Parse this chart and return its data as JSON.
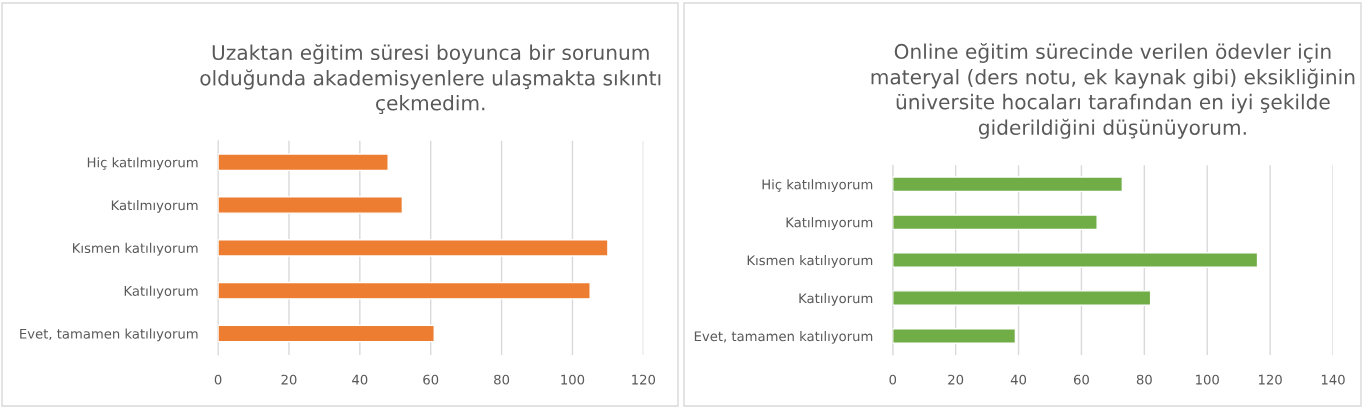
{
  "chart_data": [
    {
      "type": "bar",
      "orientation": "horizontal",
      "title": "Uzaktan eğitim süresi boyunca bir sorunum\nolduğunda akademisyenlere ulaşmakta sıkıntı\nçekmedim.",
      "categories": [
        "Hiç katılmıyorum",
        "Katılmıyorum",
        "Kısmen katılıyorum",
        "Katılıyorum",
        "Evet, tamamen katılıyorum"
      ],
      "values": [
        48,
        52,
        110,
        105,
        61
      ],
      "color": "#ed7d31",
      "xlim": [
        0,
        120
      ],
      "xticks": [
        0,
        20,
        40,
        60,
        80,
        100,
        120
      ],
      "grid": "x"
    },
    {
      "type": "bar",
      "orientation": "horizontal",
      "title": "Online eğitim sürecinde verilen ödevler için\nmateryal (ders notu, ek kaynak gibi) eksikliğinin\nüniversite hocaları tarafından en iyi şekilde\ngiderildiğini düşünüyorum.",
      "categories": [
        "Hiç katılmıyorum",
        "Katılmıyorum",
        "Kısmen katılıyorum",
        "Katılıyorum",
        "Evet, tamamen katılıyorum"
      ],
      "values": [
        73,
        65,
        116,
        82,
        39
      ],
      "color": "#70ad47",
      "xlim": [
        0,
        140
      ],
      "xticks": [
        0,
        20,
        40,
        60,
        80,
        100,
        120,
        140
      ],
      "grid": "x"
    }
  ]
}
